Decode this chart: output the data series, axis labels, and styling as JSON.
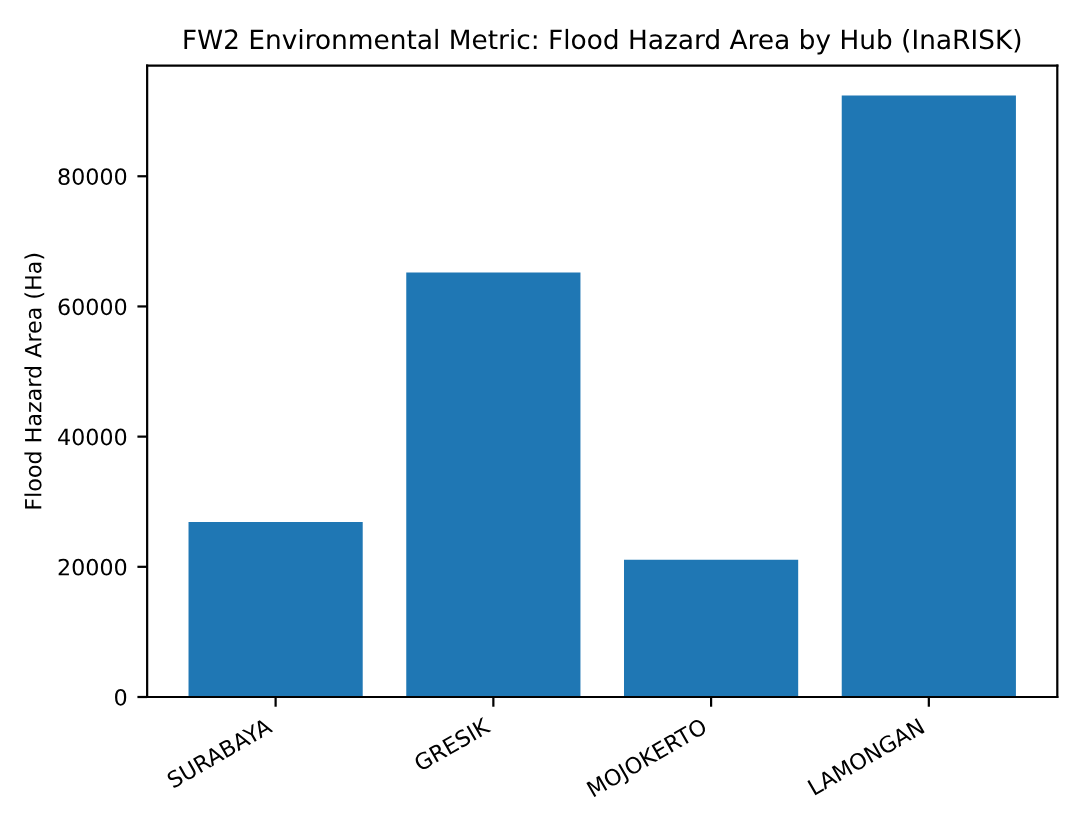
{
  "chart_data": {
    "type": "bar",
    "title": "FW2 Environmental Metric: Flood Hazard Area by Hub (InaRISK)",
    "ylabel": "Flood Hazard Area (Ha)",
    "categories": [
      "SURABAYA",
      "GRESIK",
      "MOJOKERTO",
      "LAMONGAN"
    ],
    "values": [
      26900,
      65200,
      21100,
      92400
    ],
    "color": "#1f77b4",
    "ylim": [
      0,
      97000
    ],
    "yticks": [
      0,
      20000,
      40000,
      60000,
      80000
    ],
    "grid": false,
    "legend": false
  }
}
